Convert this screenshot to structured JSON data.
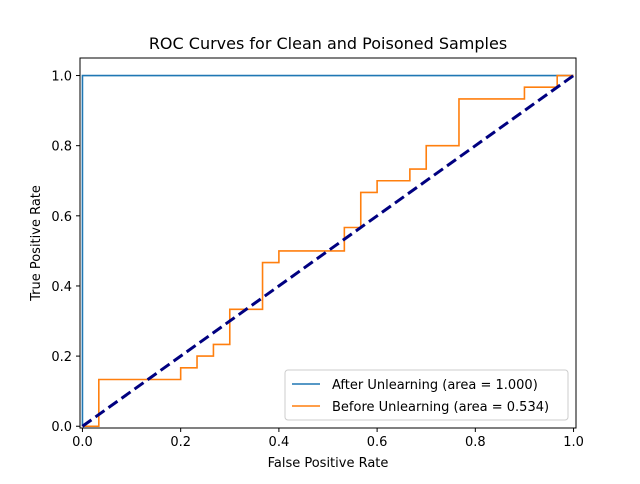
{
  "chart_data": {
    "type": "line",
    "title": "ROC Curves for Clean and Poisoned Samples",
    "xlabel": "False Positive Rate",
    "ylabel": "True Positive Rate",
    "xlim": [
      -0.005,
      1.005
    ],
    "ylim": [
      -0.005,
      1.05
    ],
    "xticks": [
      0.0,
      0.2,
      0.4,
      0.6,
      0.8,
      1.0
    ],
    "xtick_labels": [
      "0.0",
      "0.2",
      "0.4",
      "0.6",
      "0.8",
      "1.0"
    ],
    "yticks": [
      0.0,
      0.2,
      0.4,
      0.6,
      0.8,
      1.0
    ],
    "ytick_labels": [
      "0.0",
      "0.2",
      "0.4",
      "0.6",
      "0.8",
      "1.0"
    ],
    "grid": false,
    "legend_position": "lower-right",
    "series": [
      {
        "name": "After Unlearning (area = 1.000)",
        "color": "#1f77b4",
        "x": [
          0.0,
          0.0,
          1.0
        ],
        "y": [
          0.0,
          1.0,
          1.0
        ]
      },
      {
        "name": "Before Unlearning (area = 0.534)",
        "color": "#ff7f0e",
        "x": [
          0.0,
          0.0333,
          0.0333,
          0.2,
          0.2,
          0.2333,
          0.2333,
          0.2667,
          0.2667,
          0.3,
          0.3,
          0.3667,
          0.3667,
          0.4,
          0.4,
          0.5333,
          0.5333,
          0.5667,
          0.5667,
          0.6,
          0.6,
          0.6667,
          0.6667,
          0.7,
          0.7,
          0.7667,
          0.7667,
          0.9,
          0.9,
          0.9667,
          0.9667,
          1.0
        ],
        "y": [
          0.0,
          0.0,
          0.1333,
          0.1333,
          0.1667,
          0.1667,
          0.2,
          0.2,
          0.2333,
          0.2333,
          0.3333,
          0.3333,
          0.4667,
          0.4667,
          0.5,
          0.5,
          0.5667,
          0.5667,
          0.6667,
          0.6667,
          0.7,
          0.7,
          0.7333,
          0.7333,
          0.8,
          0.8,
          0.9333,
          0.9333,
          0.9667,
          0.9667,
          1.0,
          1.0
        ]
      }
    ],
    "reference_line": {
      "color": "#000080",
      "dash": true,
      "x": [
        0.0,
        1.0
      ],
      "y": [
        0.0,
        1.0
      ]
    }
  }
}
